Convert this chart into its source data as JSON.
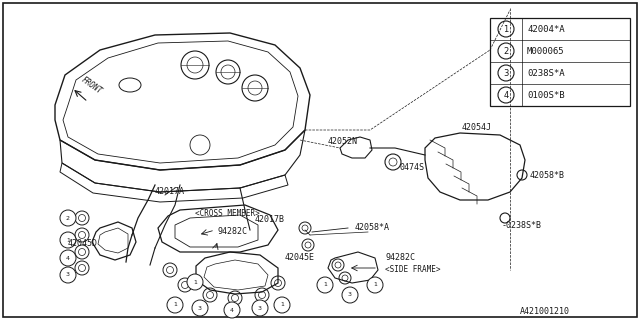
{
  "bg_color": "#ffffff",
  "line_color": "#1a1a1a",
  "text_color": "#1a1a1a",
  "legend_items": [
    {
      "num": "1",
      "text": "42004*A"
    },
    {
      "num": "2",
      "text": "M000065"
    },
    {
      "num": "3",
      "text": "0238S*A"
    },
    {
      "num": "4",
      "text": "0100S*B"
    }
  ],
  "font_size_labels": 5.8,
  "font_size_legend": 6.5
}
